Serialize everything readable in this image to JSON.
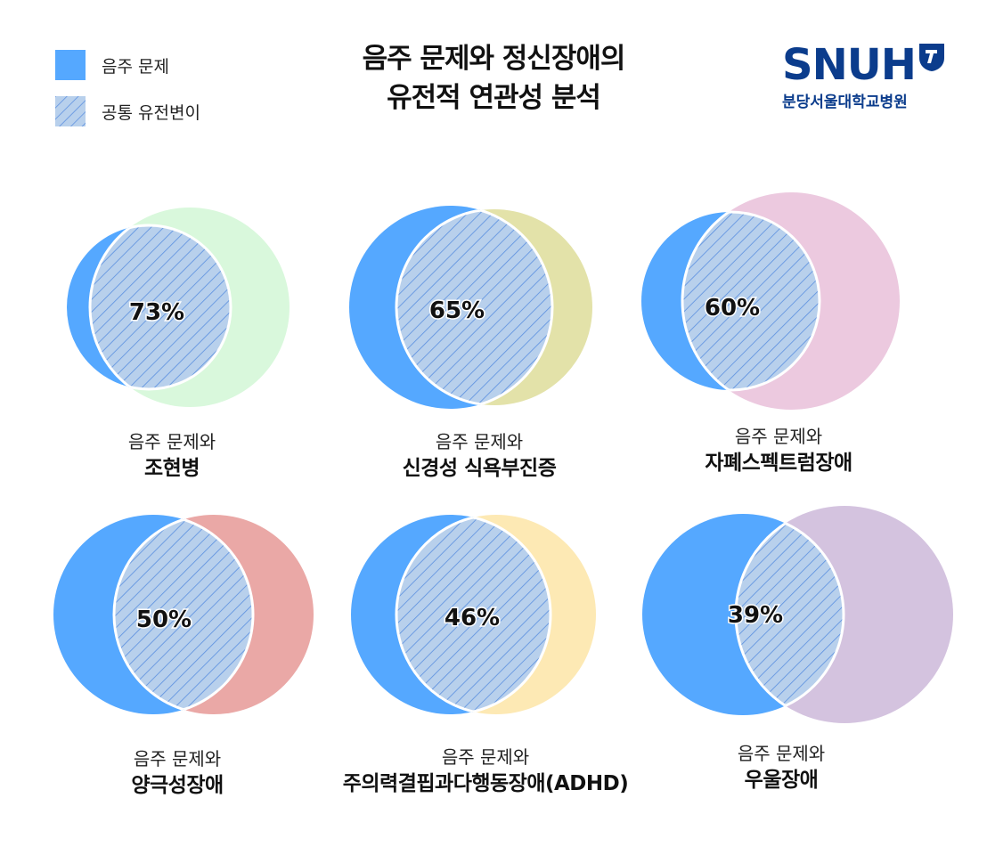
{
  "legend": [
    {
      "label": "음주 문제",
      "color": "#55a8ff",
      "pattern": "solid"
    },
    {
      "label": "공통 유전변이",
      "color": "#b8d0ec",
      "pattern": "hatched"
    }
  ],
  "title": {
    "line1": "음주 문제와 정신장애의",
    "line2": "유전적 연관성 분석"
  },
  "logo": {
    "text": "SNUH",
    "subtitle": "분당서울대학교병원",
    "color": "#0b3c8c"
  },
  "colors": {
    "alcohol": "#55a8ff",
    "shared_fill": "#b8d0ec",
    "hatch": "#5a8fe0"
  },
  "diagrams": [
    {
      "caption_prefix": "음주 문제와",
      "disorder": "조현병",
      "shared_percent": "73%",
      "disorder_color": "#d9f8dc"
    },
    {
      "caption_prefix": "음주 문제와",
      "disorder": "신경성 식욕부진증",
      "shared_percent": "65%",
      "disorder_color": "#e3e2a9"
    },
    {
      "caption_prefix": "음주 문제와",
      "disorder": "자폐스펙트럼장애",
      "shared_percent": "60%",
      "disorder_color": "#ecc9df"
    },
    {
      "caption_prefix": "음주 문제와",
      "disorder": "양극성장애",
      "shared_percent": "50%",
      "disorder_color": "#eaa8a6"
    },
    {
      "caption_prefix": "음주 문제와",
      "disorder": "주의력결핍과다행동장애(ADHD)",
      "shared_percent": "46%",
      "disorder_color": "#fde9b4"
    },
    {
      "caption_prefix": "음주 문제와",
      "disorder": "우울장애",
      "shared_percent": "39%",
      "disorder_color": "#d4c3df"
    }
  ]
}
